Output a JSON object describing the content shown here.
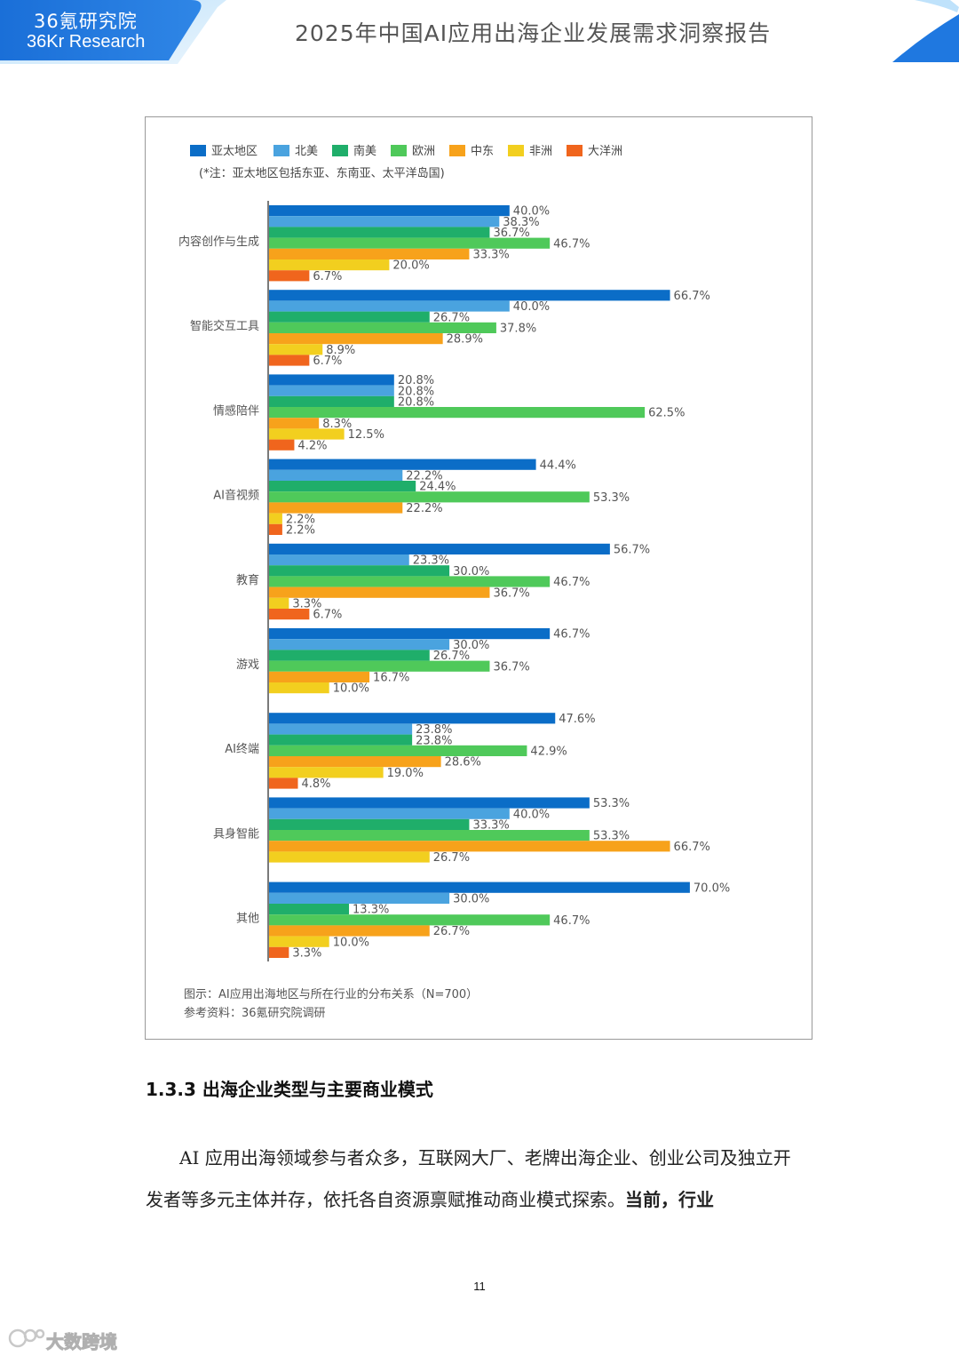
{
  "header": {
    "brand_cn": "36氪研究院",
    "brand_en": "36Kr Research",
    "report_title": "2025年中国AI应用出海企业发展需求洞察报告",
    "colors": {
      "brand_blue": "#1a6fd8",
      "light_blue": "#6fb6f2"
    }
  },
  "chart_note": "(*注：亚太地区包括东亚、东南亚、太平洋岛国)",
  "chart_data": {
    "type": "bar",
    "orientation": "horizontal",
    "categories": [
      "内容创作与生成",
      "智能交互工具",
      "情感陪伴",
      "AI音视频",
      "教育",
      "游戏",
      "AI终端",
      "具身智能",
      "其他"
    ],
    "series": [
      {
        "name": "亚太地区",
        "color": "#0b6dc7",
        "values": [
          40.0,
          66.7,
          20.8,
          44.4,
          56.7,
          46.7,
          47.6,
          53.3,
          70.0
        ]
      },
      {
        "name": "北美",
        "color": "#4aa3df",
        "values": [
          38.3,
          40.0,
          20.8,
          22.2,
          23.3,
          30.0,
          23.8,
          40.0,
          30.0
        ]
      },
      {
        "name": "南美",
        "color": "#1fae6a",
        "values": [
          36.7,
          26.7,
          20.8,
          24.4,
          30.0,
          26.7,
          23.8,
          33.3,
          13.3
        ]
      },
      {
        "name": "欧洲",
        "color": "#4fc95a",
        "values": [
          46.7,
          37.8,
          62.5,
          53.3,
          46.7,
          36.7,
          42.9,
          53.3,
          46.7
        ]
      },
      {
        "name": "中东",
        "color": "#f7a21b",
        "values": [
          33.3,
          28.9,
          8.3,
          22.2,
          36.7,
          16.7,
          28.6,
          66.7,
          26.7
        ]
      },
      {
        "name": "非洲",
        "color": "#f2cf1f",
        "values": [
          20.0,
          8.9,
          12.5,
          2.2,
          3.3,
          10.0,
          19.0,
          26.7,
          10.0
        ]
      },
      {
        "name": "大洋洲",
        "color": "#f0651d",
        "values": [
          6.7,
          6.7,
          4.2,
          2.2,
          6.7,
          null,
          4.8,
          null,
          3.3
        ]
      }
    ],
    "value_suffix": "%",
    "legend_position": "top",
    "grid": false,
    "xlim": [
      0,
      100
    ]
  },
  "caption": "图示：AI应用出海地区与所在行业的分布关系（N=700）",
  "source": "参考资料：36氪研究院调研",
  "section_heading": "1.3.3 出海企业类型与主要商业模式",
  "paragraph_normal": "AI 应用出海领域参与者众多，互联网大厂、老牌出海企业、创业公司及独立开发者等多元主体并存，依托各自资源禀赋推动商业模式探索。",
  "paragraph_bold": "当前，行业",
  "page_number": "11",
  "watermark": "大数跨境"
}
